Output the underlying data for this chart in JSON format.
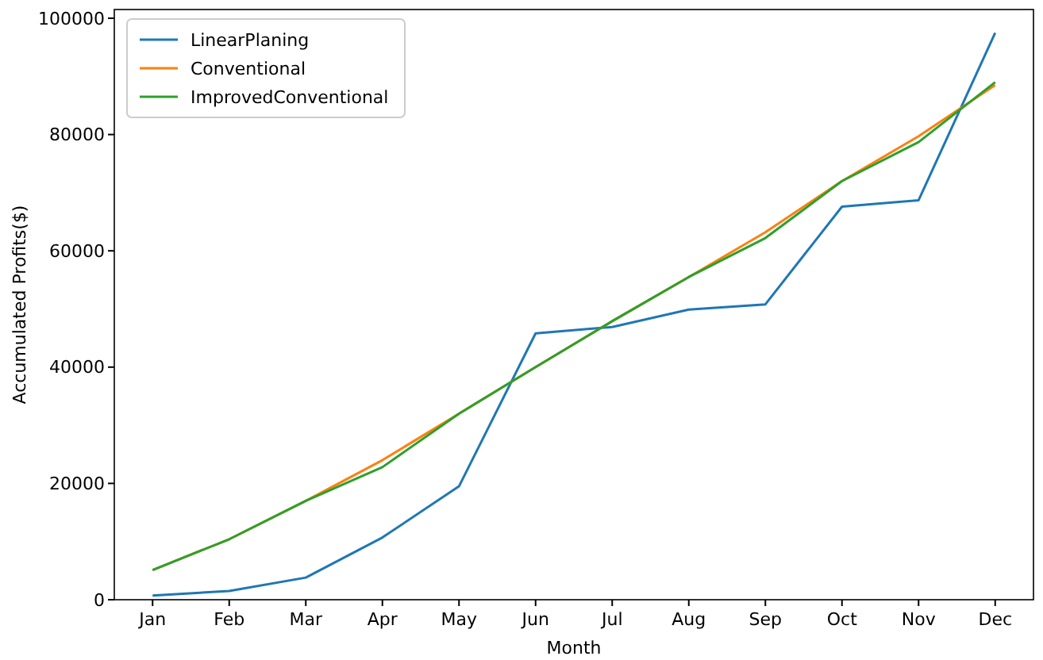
{
  "chart_data": {
    "type": "line",
    "xlabel": "Month",
    "ylabel": "Accumulated Profits($)",
    "categories": [
      "Jan",
      "Feb",
      "Mar",
      "Apr",
      "May",
      "Jun",
      "Jul",
      "Aug",
      "Sep",
      "Oct",
      "Nov",
      "Dec"
    ],
    "series": [
      {
        "name": "LinearPlaning",
        "color": "#1f77b4",
        "values": [
          700,
          1500,
          3800,
          10700,
          19500,
          45800,
          46900,
          49900,
          50800,
          67600,
          68700,
          97500
        ]
      },
      {
        "name": "Conventional",
        "color": "#ff7f0e",
        "values": [
          5100,
          10400,
          17000,
          24000,
          32000,
          40000,
          47900,
          55500,
          63200,
          72000,
          79700,
          88500
        ]
      },
      {
        "name": "ImprovedConventional",
        "color": "#2ca02c",
        "values": [
          5100,
          10400,
          17000,
          22800,
          32000,
          40000,
          47900,
          55500,
          62200,
          72000,
          78700,
          89000
        ]
      }
    ],
    "ylim": [
      0,
      101500
    ],
    "yticks": [
      0,
      20000,
      40000,
      60000,
      80000,
      100000
    ],
    "grid": false,
    "legend": "top left",
    "marker": "none",
    "line_style": "solid"
  }
}
